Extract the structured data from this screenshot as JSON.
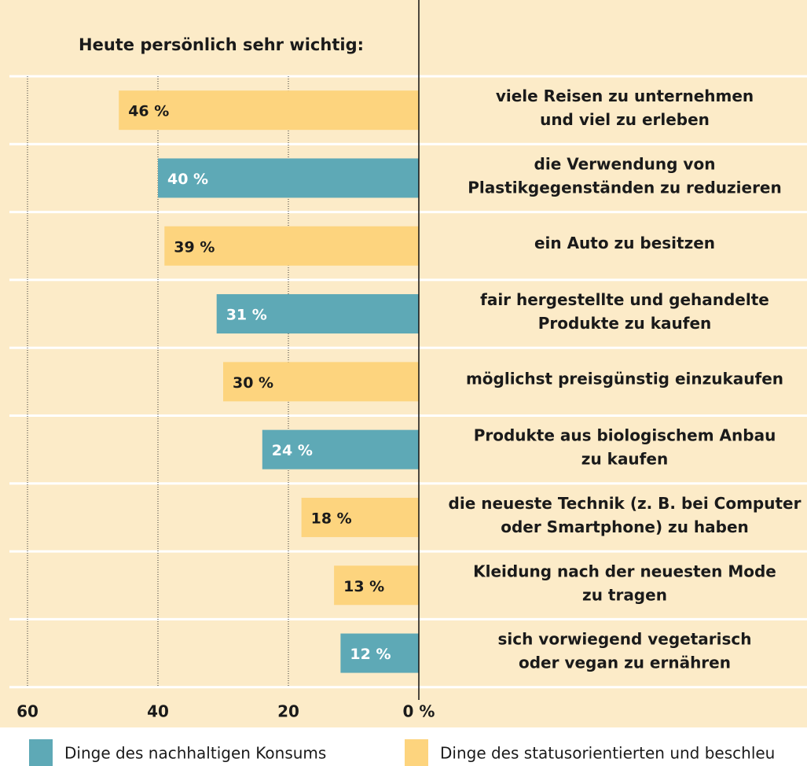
{
  "chart_data": {
    "type": "bar",
    "orientation": "horizontal",
    "reversed": true,
    "subtitle": "Heute persönlich sehr wichtig:",
    "categories": [
      "viele Reisen zu unternehmen\nund viel zu erleben",
      "die Verwendung von\nPlastikgegenständen zu reduzieren",
      "ein Auto zu besitzen",
      "fair hergestellte und gehandelte\nProdukte zu kaufen",
      "möglichst preisgünstig einzukaufen",
      "Produkte aus biologischem Anbau\nzu kaufen",
      "die neueste Technik (z. B. bei Computer\noder Smartphone) zu haben",
      "Kleidung nach der neuesten Mode\nzu tragen",
      "sich vorwiegend vegetarisch\noder vegan zu ernähren"
    ],
    "series": [
      {
        "name": "Dinge des nachhaltigen Konsums",
        "color": "#5ea9b6",
        "values": [
          null,
          40,
          null,
          31,
          null,
          24,
          null,
          null,
          12
        ],
        "value_labels": [
          null,
          "40 %",
          null,
          "31 %",
          null,
          "24 %",
          null,
          null,
          "12 %"
        ]
      },
      {
        "name": "Dinge des statusorientierten und beschleu",
        "color": "#fdd47e",
        "values": [
          46,
          null,
          39,
          null,
          30,
          null,
          18,
          13,
          null
        ],
        "value_labels": [
          "46 %",
          null,
          "39 %",
          null,
          "30 %",
          null,
          "18 %",
          "13 %",
          null
        ]
      }
    ],
    "xlim": [
      0,
      60
    ],
    "xticks": [
      60,
      40,
      20,
      {
        "value": 0,
        "label": "0 %"
      }
    ],
    "grid": true
  }
}
